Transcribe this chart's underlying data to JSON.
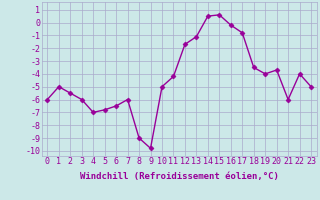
{
  "x": [
    0,
    1,
    2,
    3,
    4,
    5,
    6,
    7,
    8,
    9,
    10,
    11,
    12,
    13,
    14,
    15,
    16,
    17,
    18,
    19,
    20,
    21,
    22,
    23
  ],
  "y": [
    -6,
    -5,
    -5.5,
    -6,
    -7,
    -6.8,
    -6.5,
    -6,
    -9,
    -9.8,
    -5,
    -4.2,
    -1.7,
    -1.1,
    0.5,
    0.6,
    -0.2,
    -0.8,
    -3.5,
    -4,
    -3.7,
    -6,
    -4,
    -5
  ],
  "xlabel": "Windchill (Refroidissement éolien,°C)",
  "ylim": [
    -10.4,
    1.6
  ],
  "xlim": [
    -0.5,
    23.5
  ],
  "yticks": [
    1,
    0,
    -1,
    -2,
    -3,
    -4,
    -5,
    -6,
    -7,
    -8,
    -9,
    -10
  ],
  "ytick_labels": [
    "1",
    "0",
    "-1",
    "-2",
    "-3",
    "-4",
    "-5",
    "-6",
    "-7",
    "-8",
    "-9",
    "-10"
  ],
  "xticks": [
    0,
    1,
    2,
    3,
    4,
    5,
    6,
    7,
    8,
    9,
    10,
    11,
    12,
    13,
    14,
    15,
    16,
    17,
    18,
    19,
    20,
    21,
    22,
    23
  ],
  "line_color": "#990099",
  "bg_color": "#cce8e8",
  "grid_color": "#aaaacc",
  "marker_size": 2.5,
  "line_width": 1.0,
  "xlabel_fontsize": 6.5,
  "tick_fontsize": 6.0
}
